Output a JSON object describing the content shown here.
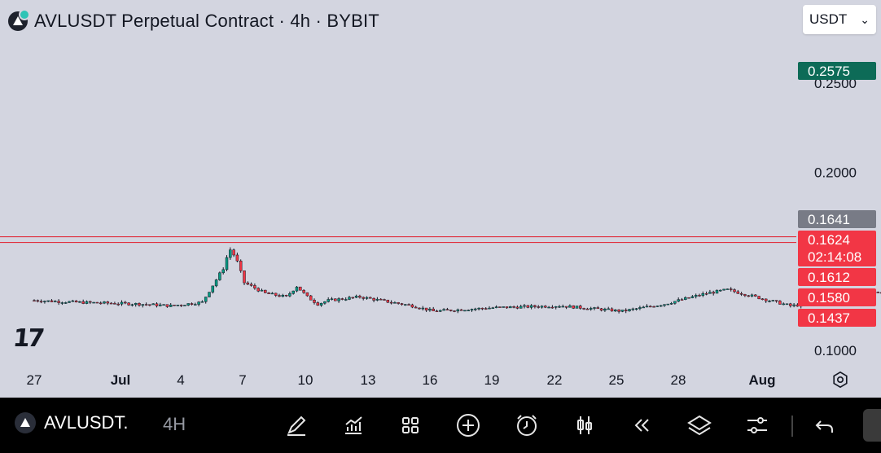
{
  "header": {
    "title": "AVLUSDT Perpetual Contract · 4h · BYBIT",
    "logo_icon": "avl-logo-icon"
  },
  "currency_select": {
    "value": "USDT",
    "icon": "chevron-down-icon"
  },
  "watermark": "17",
  "colors": {
    "background": "#d3d5e0",
    "up": "#089981",
    "down": "#f23645",
    "target_zone": "#5a958e",
    "stop_zone": "#e5a5b0",
    "price_line": "#e0303f",
    "label_green": "#0d6b57",
    "label_gray": "#787b86",
    "label_red": "#f23645"
  },
  "chart_data": {
    "type": "candlestick",
    "symbol": "AVLUSDT",
    "interval": "4h",
    "y_axis": {
      "min": 0.08,
      "max": 0.27,
      "ticks": [
        "0.2500",
        "0.2000",
        "0.1000"
      ]
    },
    "x_axis": {
      "ticks": [
        "27",
        "Jul",
        "4",
        "7",
        "10",
        "13",
        "16",
        "19",
        "22",
        "25",
        "28",
        "Aug"
      ]
    },
    "price_path": [
      [
        0,
        0.128
      ],
      [
        2,
        0.127
      ],
      [
        5,
        0.126
      ],
      [
        6.5,
        0.125
      ],
      [
        8,
        0.127
      ],
      [
        9,
        0.146
      ],
      [
        9.3,
        0.157
      ],
      [
        9.6,
        0.152
      ],
      [
        10,
        0.138
      ],
      [
        11,
        0.132
      ],
      [
        12,
        0.13
      ],
      [
        12.5,
        0.136
      ],
      [
        13,
        0.13
      ],
      [
        13.5,
        0.126
      ],
      [
        14,
        0.128
      ],
      [
        15.5,
        0.13
      ],
      [
        17,
        0.127
      ],
      [
        18,
        0.125
      ],
      [
        19,
        0.122
      ],
      [
        22,
        0.124
      ],
      [
        25,
        0.125
      ],
      [
        28,
        0.122
      ],
      [
        30,
        0.126
      ],
      [
        31,
        0.129
      ],
      [
        32,
        0.132
      ],
      [
        33,
        0.134
      ],
      [
        34,
        0.131
      ],
      [
        35,
        0.128
      ],
      [
        36,
        0.125
      ],
      [
        37,
        0.126
      ],
      [
        38,
        0.127
      ],
      [
        39,
        0.131
      ],
      [
        40,
        0.133
      ],
      [
        41,
        0.13
      ],
      [
        42,
        0.128
      ],
      [
        43,
        0.128
      ],
      [
        44,
        0.131
      ],
      [
        45,
        0.137
      ],
      [
        45.5,
        0.14
      ],
      [
        46,
        0.145
      ],
      [
        46.8,
        0.147
      ],
      [
        47.5,
        0.149
      ],
      [
        48,
        0.145
      ],
      [
        49,
        0.141
      ],
      [
        50,
        0.14
      ],
      [
        51,
        0.143
      ],
      [
        51.5,
        0.145
      ],
      [
        52,
        0.152
      ],
      [
        52.5,
        0.162
      ],
      [
        53,
        0.17
      ],
      [
        53.5,
        0.168
      ],
      [
        54,
        0.163
      ],
      [
        54.5,
        0.166
      ],
      [
        55,
        0.161
      ],
      [
        55.5,
        0.168
      ],
      [
        56,
        0.164
      ],
      [
        56.5,
        0.161
      ],
      [
        57,
        0.164
      ]
    ],
    "position": {
      "entry": 0.1624,
      "target": 0.2575,
      "stop": 0.1437
    },
    "horizontal_lines": [
      0.1612,
      0.158
    ],
    "price_labels": [
      {
        "value": "0.2575",
        "kind": "target"
      },
      {
        "value": "0.1641",
        "kind": "current"
      },
      {
        "value": "0.1624",
        "kind": "entry",
        "countdown": "02:14:08"
      },
      {
        "value": "0.1612",
        "kind": "line"
      },
      {
        "value": "0.1580",
        "kind": "line"
      },
      {
        "value": "0.1437",
        "kind": "stop"
      }
    ]
  },
  "toolbar": {
    "symbol": "AVLUSDT.",
    "interval": "4H",
    "icons": [
      "drawing-pen-icon",
      "indicators-icon",
      "layout-grid-icon",
      "add-icon",
      "alert-clock-icon",
      "candles-icon",
      "replay-icon",
      "layers-icon",
      "settings-sliders-icon",
      "undo-icon"
    ]
  }
}
